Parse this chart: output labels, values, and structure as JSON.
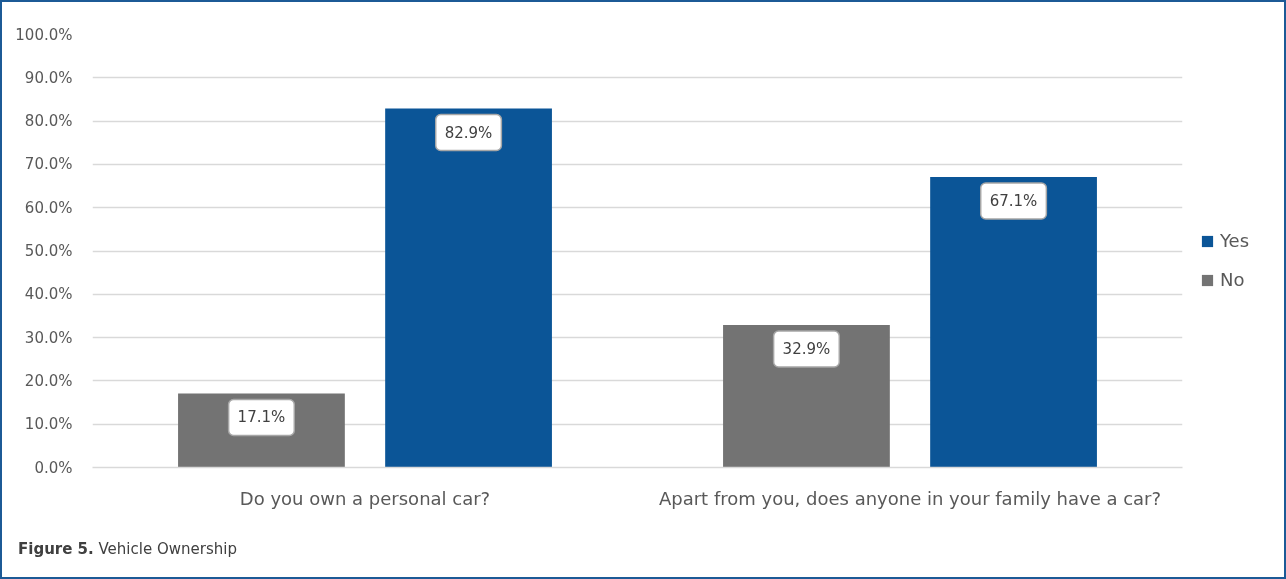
{
  "chart_data": {
    "type": "bar",
    "categories": [
      "Do you own a personal car?",
      "Apart from you, does anyone in your family have a car?"
    ],
    "series": [
      {
        "name": "No",
        "color": "#737373",
        "values": [
          17.1,
          32.9
        ],
        "value_labels": [
          "17.1%",
          "32.9%"
        ]
      },
      {
        "name": "Yes",
        "color": "#0b5597",
        "values": [
          82.9,
          67.1
        ],
        "value_labels": [
          "82.9%",
          "67.1%"
        ]
      }
    ],
    "ylim": [
      0,
      100
    ],
    "yticks": [
      {
        "value": 0,
        "label": "0.0%"
      },
      {
        "value": 10,
        "label": "10.0%"
      },
      {
        "value": 20,
        "label": "20.0%"
      },
      {
        "value": 30,
        "label": "30.0%"
      },
      {
        "value": 40,
        "label": "40.0%"
      },
      {
        "value": 50,
        "label": "50.0%"
      },
      {
        "value": 60,
        "label": "60.0%"
      },
      {
        "value": 70,
        "label": "70.0%"
      },
      {
        "value": 80,
        "label": "80.0%"
      },
      {
        "value": 90,
        "label": "90.0%"
      },
      {
        "value": 100,
        "label": "100.0%"
      }
    ],
    "grid": "y",
    "legend": "right",
    "annotations": [
      "Figure 5. Vehicle Ownership"
    ]
  }
}
